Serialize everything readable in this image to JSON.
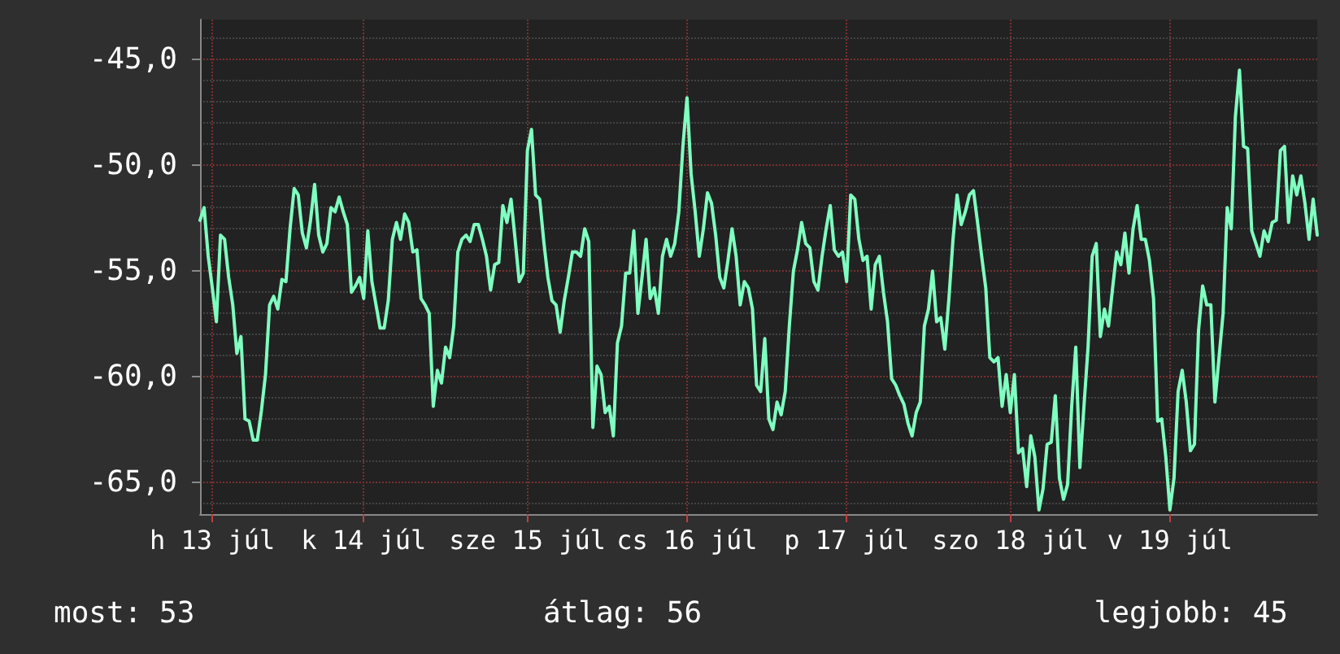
{
  "chart_data": {
    "type": "line",
    "grid": true,
    "marker": "none",
    "line_style": "solid",
    "ylim": [
      -66.5,
      -43.1
    ],
    "categories": [
      null,
      null,
      null,
      "h 13 júl",
      null,
      null,
      null,
      null,
      null,
      null,
      null,
      null,
      null,
      null,
      null,
      null,
      null,
      null,
      null,
      null,
      null,
      null,
      null,
      null,
      null,
      null,
      null,
      null,
      null,
      null,
      null,
      null,
      null,
      null,
      null,
      null,
      null,
      null,
      null,
      null,
      "k 14 júl",
      null,
      null,
      null,
      null,
      null,
      null,
      null,
      null,
      null,
      null,
      null,
      null,
      null,
      null,
      null,
      null,
      null,
      null,
      null,
      null,
      null,
      null,
      null,
      null,
      null,
      null,
      null,
      null,
      null,
      null,
      null,
      null,
      null,
      null,
      null,
      null,
      null,
      null,
      null,
      "sze 15 júl",
      null,
      null,
      null,
      null,
      null,
      null,
      null,
      null,
      null,
      null,
      null,
      null,
      null,
      null,
      null,
      null,
      null,
      null,
      null,
      null,
      null,
      null,
      null,
      null,
      null,
      null,
      null,
      null,
      null,
      null,
      null,
      null,
      null,
      null,
      null,
      null,
      null,
      null,
      "cs 16 júl",
      null,
      null,
      null,
      null,
      null,
      null,
      null,
      null,
      null,
      null,
      null,
      null,
      null,
      null,
      null,
      null,
      null,
      null,
      null,
      null,
      null,
      null,
      null,
      null,
      null,
      null,
      null,
      null,
      null,
      null,
      null,
      null,
      null,
      null,
      null,
      null,
      null,
      null,
      "p 17 júl",
      null,
      null,
      null,
      null,
      null,
      null,
      null,
      null,
      null,
      null,
      null,
      null,
      null,
      null,
      null,
      null,
      null,
      null,
      null,
      null,
      null,
      null,
      null,
      null,
      null,
      null,
      null,
      null,
      null,
      null,
      null,
      null,
      null,
      null,
      null,
      null,
      null,
      null,
      null,
      "szo 18 júl",
      null,
      null,
      null,
      null,
      null,
      null,
      null,
      null,
      null,
      null,
      null,
      null,
      null,
      null,
      null,
      null,
      null,
      null,
      null,
      null,
      null,
      null,
      null,
      null,
      null,
      null,
      null,
      null,
      null,
      null,
      null,
      null,
      null,
      null,
      null,
      null,
      null,
      null,
      "v 19 júl",
      null,
      null,
      null,
      null,
      null,
      null,
      null,
      null,
      null,
      null,
      null,
      null,
      null,
      null,
      null,
      null,
      null,
      null,
      null,
      null,
      null,
      null,
      null,
      null,
      null,
      null,
      null,
      null,
      null,
      null,
      null,
      null,
      null,
      null,
      null,
      null
    ],
    "yticks": [
      {
        "value": -65,
        "label": "-65,0"
      },
      {
        "value": -60,
        "label": "-60,0"
      },
      {
        "value": -55,
        "label": "-55,0"
      },
      {
        "value": -50,
        "label": "-50,0"
      },
      {
        "value": -45,
        "label": "-45,0"
      }
    ],
    "annotations": [
      "most: 53",
      "átlag: 56",
      "legjobb: 45"
    ],
    "series": [
      {
        "color": "#7fffc0",
        "values": [
          -52.6,
          -52.0,
          -54.3,
          -55.8,
          -57.4,
          -53.3,
          -53.5,
          -55.3,
          -56.6,
          -58.9,
          -58.1,
          -62.0,
          -62.1,
          -63.0,
          -63.0,
          -61.6,
          -59.9,
          -56.6,
          -56.2,
          -56.8,
          -55.4,
          -55.5,
          -53.0,
          -51.1,
          -51.4,
          -53.2,
          -53.9,
          -52.6,
          -50.9,
          -53.3,
          -54.1,
          -53.7,
          -52.0,
          -52.2,
          -51.5,
          -52.2,
          -52.8,
          -56.0,
          -55.7,
          -55.3,
          -56.3,
          -53.1,
          -55.5,
          -56.6,
          -57.7,
          -57.7,
          -56.4,
          -53.5,
          -52.7,
          -53.5,
          -52.3,
          -52.7,
          -54.1,
          -54.0,
          -56.3,
          -56.6,
          -57.0,
          -61.4,
          -59.7,
          -60.3,
          -58.6,
          -59.1,
          -57.6,
          -54.1,
          -53.5,
          -53.3,
          -53.6,
          -52.8,
          -52.8,
          -53.5,
          -54.3,
          -55.9,
          -54.7,
          -54.6,
          -51.9,
          -52.7,
          -51.6,
          -53.5,
          -55.5,
          -55.1,
          -49.3,
          -48.3,
          -51.4,
          -51.6,
          -53.6,
          -55.3,
          -56.4,
          -56.6,
          -57.9,
          -56.4,
          -55.3,
          -54.1,
          -54.1,
          -54.3,
          -53.0,
          -53.6,
          -62.4,
          -59.5,
          -59.9,
          -61.7,
          -61.4,
          -62.8,
          -58.4,
          -57.6,
          -55.1,
          -55.1,
          -53.1,
          -57.0,
          -55.3,
          -53.5,
          -56.3,
          -55.8,
          -57.0,
          -54.3,
          -53.5,
          -54.3,
          -53.7,
          -52.2,
          -49.1,
          -46.8,
          -50.4,
          -52.2,
          -54.3,
          -53.0,
          -51.3,
          -51.8,
          -53.3,
          -55.3,
          -55.8,
          -54.5,
          -53.0,
          -54.3,
          -56.6,
          -55.5,
          -55.8,
          -56.8,
          -60.4,
          -60.7,
          -58.2,
          -62.0,
          -62.5,
          -61.2,
          -61.8,
          -60.7,
          -57.6,
          -55.0,
          -54.0,
          -52.7,
          -53.7,
          -53.9,
          -55.5,
          -55.9,
          -54.3,
          -53.0,
          -51.9,
          -54.0,
          -54.3,
          -54.1,
          -55.5,
          -51.4,
          -51.6,
          -53.5,
          -54.5,
          -54.3,
          -56.8,
          -54.7,
          -54.3,
          -56.0,
          -57.4,
          -60.1,
          -60.4,
          -60.9,
          -61.3,
          -62.2,
          -62.8,
          -61.7,
          -61.2,
          -57.6,
          -56.8,
          -55.0,
          -57.4,
          -57.2,
          -58.7,
          -56.3,
          -53.5,
          -51.4,
          -52.8,
          -52.2,
          -51.4,
          -51.2,
          -52.7,
          -54.3,
          -55.8,
          -59.1,
          -59.3,
          -59.1,
          -61.4,
          -59.9,
          -61.7,
          -59.9,
          -63.6,
          -63.4,
          -65.2,
          -62.8,
          -63.8,
          -66.3,
          -65.3,
          -63.2,
          -63.1,
          -60.9,
          -64.8,
          -65.8,
          -65.1,
          -61.4,
          -58.6,
          -64.3,
          -61.4,
          -58.6,
          -54.3,
          -53.7,
          -58.1,
          -56.8,
          -57.6,
          -55.8,
          -54.1,
          -54.7,
          -53.2,
          -55.1,
          -53.0,
          -51.9,
          -53.5,
          -53.5,
          -54.5,
          -56.3,
          -62.1,
          -62.0,
          -63.8,
          -66.3,
          -64.8,
          -60.7,
          -59.7,
          -61.2,
          -63.5,
          -63.2,
          -57.8,
          -55.7,
          -56.6,
          -56.6,
          -61.2,
          -59.1,
          -57.0,
          -52.0,
          -53.0,
          -47.7,
          -45.5,
          -49.1,
          -49.2,
          -53.1,
          -53.7,
          -54.3,
          -53.1,
          -53.6,
          -52.7,
          -52.6,
          -49.3,
          -49.1,
          -52.7,
          -50.5,
          -51.4,
          -50.5,
          -51.8,
          -53.5,
          -51.6,
          -53.3
        ]
      }
    ]
  }
}
